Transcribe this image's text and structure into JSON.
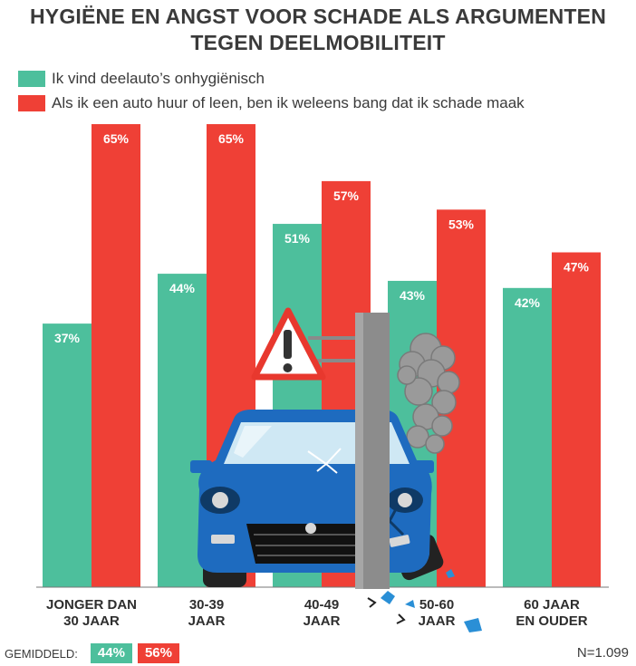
{
  "chart_data": {
    "type": "bar",
    "title": [
      "HYGIËNE EN ANGST VOOR SCHADE ALS ARGUMENTEN",
      "TEGEN DEELMOBILITEIT"
    ],
    "categories": [
      [
        "JONGER DAN",
        "30 JAAR"
      ],
      [
        "30-39",
        "JAAR"
      ],
      [
        "40-49",
        "JAAR"
      ],
      [
        "50-60",
        "JAAR"
      ],
      [
        "60 JAAR",
        "EN OUDER"
      ]
    ],
    "series": [
      {
        "name": "Ik vind deelauto’s onhygiënisch",
        "color": "#4dbf9c",
        "values": [
          37,
          44,
          51,
          43,
          42
        ],
        "labels": [
          "37%",
          "44%",
          "51%",
          "43%",
          "42%"
        ]
      },
      {
        "name": "Als ik een auto huur of leen, ben ik weleens bang dat ik schade maak",
        "color": "#ef4036",
        "values": [
          65,
          65,
          57,
          53,
          47
        ],
        "labels": [
          "65%",
          "65%",
          "57%",
          "53%",
          "47%"
        ]
      }
    ],
    "ylim": [
      0,
      65
    ],
    "grid": false,
    "legend": "top-left",
    "average": {
      "label": "GEMIDDELD:",
      "values": [
        "44%",
        "56%"
      ]
    },
    "sample_size": "N=1.099"
  },
  "illustration": {
    "icons": [
      "warning-triangle-icon",
      "crashed-car-icon",
      "lamp-post-icon",
      "smoke-icon"
    ]
  }
}
